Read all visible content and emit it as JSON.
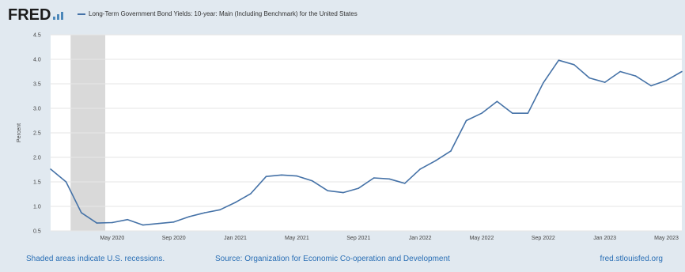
{
  "header": {
    "logo_text": "FRED",
    "legend_label": "Long-Term Government Bond Yields: 10-year: Main (Including Benchmark) for the United States"
  },
  "footer": {
    "recession_note": "Shaded areas indicate U.S. recessions.",
    "source": "Source: Organization for Economic Co-operation and Development",
    "site": "fred.stlouisfed.org"
  },
  "colors": {
    "series": "#4572a7",
    "recession": "#d9d9d9",
    "brand": "#1b1b1b",
    "link": "#2a6fb5"
  },
  "chart_data": {
    "type": "line",
    "title": "",
    "xlabel": "",
    "ylabel": "Percent",
    "ylim": [
      0.5,
      4.5
    ],
    "yticks": [
      "4.5",
      "4.0",
      "3.5",
      "3.0",
      "2.5",
      "2.0",
      "1.5",
      "1.0",
      "0.5"
    ],
    "ytick_values": [
      4.5,
      4.0,
      3.5,
      3.0,
      2.5,
      2.0,
      1.5,
      1.0,
      0.5
    ],
    "xticks": [
      {
        "label": "May 2020",
        "month_index": 4
      },
      {
        "label": "Sep 2020",
        "month_index": 8
      },
      {
        "label": "Jan 2021",
        "month_index": 12
      },
      {
        "label": "May 2021",
        "month_index": 16
      },
      {
        "label": "Sep 2021",
        "month_index": 20
      },
      {
        "label": "Jan 2022",
        "month_index": 24
      },
      {
        "label": "May 2022",
        "month_index": 28
      },
      {
        "label": "Sep 2022",
        "month_index": 32
      },
      {
        "label": "Jan 2023",
        "month_index": 36
      },
      {
        "label": "May 2023",
        "month_index": 40
      }
    ],
    "recession": {
      "from": "2020-02",
      "to": "2020-04"
    },
    "grid": true,
    "legend": "top",
    "series": [
      {
        "name": "Long-Term Government Bond Yields: 10-year: Main (Including Benchmark) for the United States",
        "x": [
          "2020-01",
          "2020-02",
          "2020-03",
          "2020-04",
          "2020-05",
          "2020-06",
          "2020-07",
          "2020-08",
          "2020-09",
          "2020-10",
          "2020-11",
          "2020-12",
          "2021-01",
          "2021-02",
          "2021-03",
          "2021-04",
          "2021-05",
          "2021-06",
          "2021-07",
          "2021-08",
          "2021-09",
          "2021-10",
          "2021-11",
          "2021-12",
          "2022-01",
          "2022-02",
          "2022-03",
          "2022-04",
          "2022-05",
          "2022-06",
          "2022-07",
          "2022-08",
          "2022-09",
          "2022-10",
          "2022-11",
          "2022-12",
          "2023-01",
          "2023-02",
          "2023-03",
          "2023-04",
          "2023-05",
          "2023-06"
        ],
        "values": [
          1.76,
          1.5,
          0.87,
          0.66,
          0.67,
          0.73,
          0.62,
          0.65,
          0.68,
          0.79,
          0.87,
          0.93,
          1.08,
          1.26,
          1.61,
          1.64,
          1.62,
          1.52,
          1.32,
          1.28,
          1.37,
          1.58,
          1.56,
          1.47,
          1.76,
          1.93,
          2.13,
          2.75,
          2.9,
          3.14,
          2.9,
          2.9,
          3.52,
          3.98,
          3.89,
          3.62,
          3.53,
          3.75,
          3.66,
          3.46,
          3.57,
          3.75
        ]
      }
    ]
  }
}
